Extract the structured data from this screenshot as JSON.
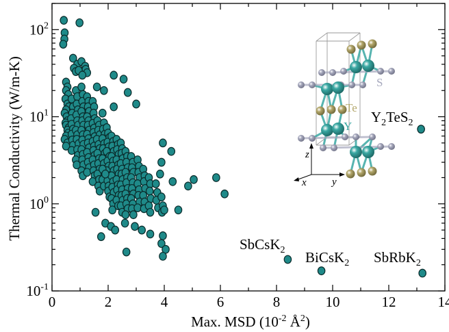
{
  "chart_data": {
    "type": "scatter",
    "xlabel": "Max. MSD (10",
    "xlabel_sup": "-2",
    "xlabel_unit": " Å",
    "xlabel_sup2": "2",
    "xlabel_end": ")",
    "ylabel": "Thermal Conductivity (W/m-K)",
    "xlim": [
      0,
      14
    ],
    "ylim": [
      0.1,
      200
    ],
    "yscale": "log",
    "grid": false,
    "x_ticks": [
      0,
      2,
      4,
      6,
      8,
      10,
      12,
      14
    ],
    "x_tick_labels": [
      "0",
      "2",
      "4",
      "6",
      "8",
      "10",
      "12",
      "14"
    ],
    "y_ticks": [
      0.1,
      1,
      10,
      100
    ],
    "y_tick_base": "10",
    "y_tick_exps": [
      "-1",
      "0",
      "1",
      "2"
    ],
    "marker_color": "#1f8a89",
    "annotations": [
      {
        "id": "y2tes2",
        "base": "Y",
        "s1": "2",
        "mid": "TeS",
        "s2": "2",
        "x": 13.15,
        "y": 7.2
      },
      {
        "id": "sbcsk2",
        "base": "SbCsK",
        "s1": "2",
        "mid": "",
        "s2": "",
        "x": 8.4,
        "y": 0.23
      },
      {
        "id": "bicsk2",
        "base": "BiCsK",
        "s1": "2",
        "mid": "",
        "s2": "",
        "x": 9.6,
        "y": 0.17
      },
      {
        "id": "sbrbk2",
        "base": "SbRbK",
        "s1": "2",
        "mid": "",
        "s2": "",
        "x": 13.2,
        "y": 0.16
      }
    ],
    "inset": {
      "atom_labels": [
        "S",
        "Te",
        "Y"
      ],
      "axis_labels": [
        "z",
        "x",
        "y"
      ],
      "colors": {
        "Y": "#3aa8a3",
        "Te": "#b3a76b",
        "S": "#a6a8bd"
      }
    },
    "points": [
      [
        0.42,
        128
      ],
      [
        0.45,
        92
      ],
      [
        0.44,
        78
      ],
      [
        0.4,
        68
      ],
      [
        0.98,
        120
      ],
      [
        0.75,
        47
      ],
      [
        0.9,
        40
      ],
      [
        1.05,
        43
      ],
      [
        1.18,
        38
      ],
      [
        1.2,
        35
      ],
      [
        0.78,
        36
      ],
      [
        0.85,
        33
      ],
      [
        0.95,
        34
      ],
      [
        1.25,
        32
      ],
      [
        1.08,
        30
      ],
      [
        0.5,
        25
      ],
      [
        0.55,
        22
      ],
      [
        0.5,
        20
      ],
      [
        0.58,
        18
      ],
      [
        0.48,
        16
      ],
      [
        0.55,
        14
      ],
      [
        0.6,
        13
      ],
      [
        0.5,
        12
      ],
      [
        0.45,
        11
      ],
      [
        0.52,
        10
      ],
      [
        0.55,
        9
      ],
      [
        0.48,
        8.5
      ],
      [
        0.5,
        8
      ],
      [
        0.6,
        7.5
      ],
      [
        0.55,
        7
      ],
      [
        0.58,
        6.5
      ],
      [
        0.5,
        6
      ],
      [
        0.45,
        5.5
      ],
      [
        0.55,
        5
      ],
      [
        0.5,
        4.6
      ],
      [
        0.7,
        16
      ],
      [
        0.75,
        13
      ],
      [
        0.72,
        11
      ],
      [
        0.68,
        9.5
      ],
      [
        0.7,
        8.2
      ],
      [
        0.75,
        7.2
      ],
      [
        0.7,
        6.3
      ],
      [
        0.72,
        5.4
      ],
      [
        0.75,
        4.7
      ],
      [
        0.7,
        4.1
      ],
      [
        0.85,
        20
      ],
      [
        0.9,
        17
      ],
      [
        0.88,
        14
      ],
      [
        0.92,
        12
      ],
      [
        0.87,
        10.5
      ],
      [
        0.9,
        9
      ],
      [
        0.93,
        8
      ],
      [
        0.85,
        7
      ],
      [
        0.9,
        6.2
      ],
      [
        0.88,
        5.5
      ],
      [
        0.95,
        4.9
      ],
      [
        0.9,
        4.2
      ],
      [
        0.92,
        3.6
      ],
      [
        0.85,
        3.2
      ],
      [
        0.88,
        2.8
      ],
      [
        1.05,
        22
      ],
      [
        1.1,
        18
      ],
      [
        1.08,
        15
      ],
      [
        1.12,
        13
      ],
      [
        1.05,
        11.5
      ],
      [
        1.1,
        10
      ],
      [
        1.08,
        9
      ],
      [
        1.12,
        8
      ],
      [
        1.05,
        7
      ],
      [
        1.1,
        6.2
      ],
      [
        1.08,
        5.4
      ],
      [
        1.12,
        4.8
      ],
      [
        1.05,
        4.2
      ],
      [
        1.1,
        3.7
      ],
      [
        1.08,
        3.2
      ],
      [
        1.12,
        2.8
      ],
      [
        1.05,
        2.4
      ],
      [
        1.1,
        2.1
      ],
      [
        1.25,
        17
      ],
      [
        1.3,
        15
      ],
      [
        1.28,
        13
      ],
      [
        1.32,
        11.5
      ],
      [
        1.25,
        10
      ],
      [
        1.3,
        9
      ],
      [
        1.28,
        8
      ],
      [
        1.32,
        7
      ],
      [
        1.25,
        6.3
      ],
      [
        1.3,
        5.6
      ],
      [
        1.28,
        5
      ],
      [
        1.32,
        4.4
      ],
      [
        1.25,
        3.9
      ],
      [
        1.3,
        3.4
      ],
      [
        1.28,
        3
      ],
      [
        1.32,
        2.6
      ],
      [
        1.25,
        2.3
      ],
      [
        1.45,
        15
      ],
      [
        1.5,
        13
      ],
      [
        1.48,
        11
      ],
      [
        1.52,
        9.5
      ],
      [
        1.45,
        8.4
      ],
      [
        1.5,
        7.4
      ],
      [
        1.48,
        6.6
      ],
      [
        1.52,
        5.9
      ],
      [
        1.45,
        5.2
      ],
      [
        1.5,
        4.6
      ],
      [
        1.48,
        4.1
      ],
      [
        1.52,
        3.6
      ],
      [
        1.45,
        3.2
      ],
      [
        1.5,
        2.8
      ],
      [
        1.48,
        2.4
      ],
      [
        1.52,
        2.1
      ],
      [
        1.45,
        1.8
      ],
      [
        1.62,
        9
      ],
      [
        1.68,
        8
      ],
      [
        1.65,
        7
      ],
      [
        1.7,
        6.2
      ],
      [
        1.6,
        5.5
      ],
      [
        1.66,
        4.8
      ],
      [
        1.7,
        4.3
      ],
      [
        1.62,
        3.8
      ],
      [
        1.68,
        3.3
      ],
      [
        1.65,
        2.9
      ],
      [
        1.7,
        2.5
      ],
      [
        1.62,
        2.2
      ],
      [
        1.68,
        1.9
      ],
      [
        1.65,
        1.6
      ],
      [
        1.7,
        1.4
      ],
      [
        1.8,
        11
      ],
      [
        1.85,
        8.5
      ],
      [
        1.82,
        7.2
      ],
      [
        1.88,
        6.3
      ],
      [
        1.8,
        5.6
      ],
      [
        1.86,
        4.9
      ],
      [
        1.82,
        4.3
      ],
      [
        1.88,
        3.8
      ],
      [
        1.8,
        3.3
      ],
      [
        1.85,
        2.9
      ],
      [
        1.82,
        2.5
      ],
      [
        1.88,
        2.2
      ],
      [
        1.8,
        1.9
      ],
      [
        1.85,
        1.6
      ],
      [
        1.95,
        7.5
      ],
      [
        2,
        6.5
      ],
      [
        2.05,
        5.8
      ],
      [
        1.98,
        5.1
      ],
      [
        2.02,
        4.5
      ],
      [
        1.95,
        4
      ],
      [
        2.05,
        3.5
      ],
      [
        1.98,
        3.1
      ],
      [
        2.02,
        2.7
      ],
      [
        1.95,
        2.4
      ],
      [
        2.05,
        2.1
      ],
      [
        1.98,
        1.85
      ],
      [
        2.02,
        1.6
      ],
      [
        2,
        1.4
      ],
      [
        2.05,
        1.2
      ],
      [
        2.12,
        6
      ],
      [
        2.18,
        5.2
      ],
      [
        2.15,
        4.6
      ],
      [
        2.2,
        4
      ],
      [
        2.12,
        3.5
      ],
      [
        2.18,
        3.1
      ],
      [
        2.15,
        2.7
      ],
      [
        2.2,
        2.4
      ],
      [
        2.12,
        2.1
      ],
      [
        2.18,
        1.8
      ],
      [
        2.15,
        1.55
      ],
      [
        2.2,
        1.35
      ],
      [
        2.12,
        1.15
      ],
      [
        2.18,
        1
      ],
      [
        2.15,
        0.85
      ],
      [
        2.3,
        5.5
      ],
      [
        2.35,
        4.8
      ],
      [
        2.32,
        4.2
      ],
      [
        2.38,
        3.7
      ],
      [
        2.3,
        3.2
      ],
      [
        2.36,
        2.8
      ],
      [
        2.32,
        2.5
      ],
      [
        2.38,
        2.2
      ],
      [
        2.3,
        1.9
      ],
      [
        2.35,
        1.65
      ],
      [
        2.32,
        1.45
      ],
      [
        2.38,
        1.25
      ],
      [
        2.3,
        1.1
      ],
      [
        2.36,
        0.95
      ],
      [
        2.45,
        5
      ],
      [
        2.5,
        4.3
      ],
      [
        2.48,
        3.8
      ],
      [
        2.52,
        3.3
      ],
      [
        2.45,
        2.9
      ],
      [
        2.5,
        2.5
      ],
      [
        2.48,
        2.2
      ],
      [
        2.52,
        1.9
      ],
      [
        2.45,
        1.65
      ],
      [
        2.5,
        1.45
      ],
      [
        2.48,
        1.25
      ],
      [
        2.52,
        1.1
      ],
      [
        2.45,
        0.95
      ],
      [
        2.5,
        0.8
      ],
      [
        2.62,
        4
      ],
      [
        2.68,
        3.5
      ],
      [
        2.65,
        3
      ],
      [
        2.7,
        2.6
      ],
      [
        2.62,
        2.3
      ],
      [
        2.68,
        2
      ],
      [
        2.65,
        1.75
      ],
      [
        2.7,
        1.5
      ],
      [
        2.62,
        1.3
      ],
      [
        2.68,
        1.15
      ],
      [
        2.65,
        1
      ],
      [
        2.7,
        0.88
      ],
      [
        2.62,
        0.75
      ],
      [
        2.82,
        3.5
      ],
      [
        2.88,
        3
      ],
      [
        2.85,
        2.6
      ],
      [
        2.9,
        2.3
      ],
      [
        2.82,
        2
      ],
      [
        2.88,
        1.75
      ],
      [
        2.85,
        1.5
      ],
      [
        2.9,
        1.3
      ],
      [
        2.82,
        1.15
      ],
      [
        2.88,
        1
      ],
      [
        2.85,
        0.88
      ],
      [
        2.9,
        0.75
      ],
      [
        3.05,
        3.2
      ],
      [
        3.1,
        2.7
      ],
      [
        3.08,
        2.3
      ],
      [
        3.12,
        2
      ],
      [
        3.05,
        1.7
      ],
      [
        3.1,
        1.45
      ],
      [
        3.08,
        1.25
      ],
      [
        3.12,
        1.05
      ],
      [
        3.05,
        0.9
      ],
      [
        3.25,
        2.5
      ],
      [
        3.3,
        2.1
      ],
      [
        3.28,
        1.8
      ],
      [
        3.32,
        1.5
      ],
      [
        3.25,
        1.25
      ],
      [
        3.3,
        1.05
      ],
      [
        3.28,
        0.88
      ],
      [
        3.45,
        2
      ],
      [
        3.5,
        1.7
      ],
      [
        3.48,
        1.4
      ],
      [
        3.52,
        1.15
      ],
      [
        3.45,
        0.95
      ],
      [
        3.5,
        0.8
      ],
      [
        3.7,
        1.7
      ],
      [
        3.75,
        1.35
      ],
      [
        3.72,
        1.1
      ],
      [
        3.78,
        0.9
      ],
      [
        3.9,
        1.2
      ],
      [
        3.95,
        0.95
      ],
      [
        3.92,
        0.8
      ],
      [
        1.8,
        2.5
      ],
      [
        1.9,
        2.2
      ],
      [
        1.55,
        0.8
      ],
      [
        1.9,
        0.6
      ],
      [
        2.1,
        0.55
      ],
      [
        2.25,
        0.5
      ],
      [
        2.6,
        0.6
      ],
      [
        2.95,
        0.55
      ],
      [
        3.2,
        0.5
      ],
      [
        3.5,
        0.45
      ],
      [
        3.95,
        0.43
      ],
      [
        3.9,
        0.35
      ],
      [
        4.05,
        0.3
      ],
      [
        3.95,
        0.25
      ],
      [
        1.75,
        0.42
      ],
      [
        2.65,
        0.28
      ],
      [
        2.2,
        30
      ],
      [
        1.6,
        22
      ],
      [
        2.55,
        27
      ],
      [
        1.85,
        20
      ],
      [
        2.7,
        19
      ],
      [
        3,
        14
      ],
      [
        2.2,
        13
      ],
      [
        3.95,
        5
      ],
      [
        4.25,
        4
      ],
      [
        3.9,
        3
      ],
      [
        3.85,
        2.2
      ],
      [
        4.3,
        1.8
      ],
      [
        4,
        0.85
      ],
      [
        4.5,
        0.85
      ],
      [
        4.85,
        1.6
      ],
      [
        5.05,
        1.9
      ],
      [
        5.85,
        2
      ],
      [
        6.15,
        1.3
      ]
    ]
  }
}
